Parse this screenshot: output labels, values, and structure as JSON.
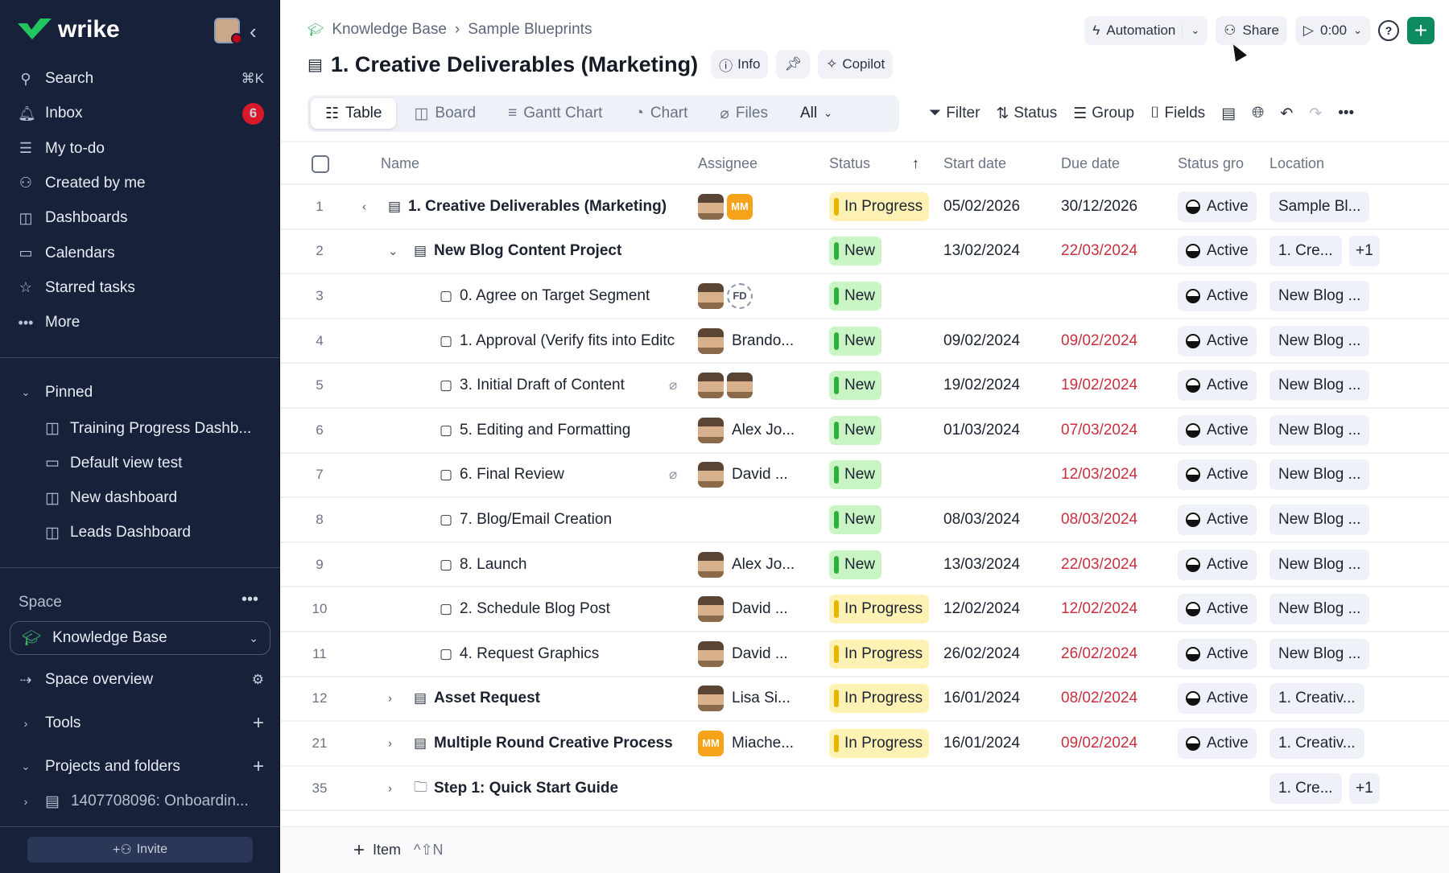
{
  "sidebar": {
    "logo": "wrike",
    "nav": [
      {
        "label": "Search",
        "icon": "search-icon",
        "glyph": "⚲",
        "shortcut": "⌘K"
      },
      {
        "label": "Inbox",
        "icon": "bell-icon",
        "glyph": "🔔︎",
        "badge": "6"
      },
      {
        "label": "My to-do",
        "icon": "todo-icon",
        "glyph": "☰"
      },
      {
        "label": "Created by me",
        "icon": "user-arrow-icon",
        "glyph": "⚇"
      },
      {
        "label": "Dashboards",
        "icon": "dashboard-icon",
        "glyph": "◫"
      },
      {
        "label": "Calendars",
        "icon": "calendar-icon",
        "glyph": "▭"
      },
      {
        "label": "Starred tasks",
        "icon": "star-icon",
        "glyph": "☆"
      },
      {
        "label": "More",
        "icon": "more-icon",
        "glyph": "•••"
      }
    ],
    "pinned_label": "Pinned",
    "pinned": [
      {
        "label": "Training Progress Dashb...",
        "icon": "dashboard-icon",
        "glyph": "◫"
      },
      {
        "label": "Default view test",
        "icon": "folder-icon",
        "glyph": "▭"
      },
      {
        "label": "New dashboard",
        "icon": "dashboard-icon",
        "glyph": "◫"
      },
      {
        "label": "Leads Dashboard",
        "icon": "dashboard-icon",
        "glyph": "◫"
      }
    ],
    "space_label": "Space",
    "space_name": "Knowledge Base",
    "space_overview": "Space overview",
    "tools": "Tools",
    "projects": "Projects and folders",
    "project_item": "1407708096: Onboardin...",
    "invite": "Invite"
  },
  "header": {
    "breadcrumb": [
      "Knowledge Base",
      "Sample Blueprints"
    ],
    "title": "1. Creative Deliverables (Marketing)",
    "info": "Info",
    "copilot": "Copilot",
    "automation": "Automation",
    "share": "Share",
    "timer": "0:00"
  },
  "views": {
    "tabs": [
      "Table",
      "Board",
      "Gantt Chart",
      "Chart",
      "Files"
    ],
    "tab_glyphs": [
      "☷",
      "◫",
      "≡",
      "◔",
      "⌀"
    ],
    "active": "Table",
    "all": "All"
  },
  "toolbar": {
    "filter": "Filter",
    "status": "Status",
    "group": "Group",
    "fields": "Fields"
  },
  "columns": {
    "name": "Name",
    "assignee": "Assignee",
    "status": "Status",
    "start": "Start date",
    "due": "Due date",
    "status_group": "Status gro",
    "location": "Location"
  },
  "colors": {
    "new_bg": "#c9f5c5",
    "new_bar": "#2fae3c",
    "progress_bg": "#fdf1b4",
    "progress_bar": "#e8b400",
    "overdue": "#c8303f",
    "brand_green": "#0e8a5f"
  },
  "rows": [
    {
      "num": "1",
      "level": 0,
      "caret": "‹",
      "type": "project",
      "name": "1. Creative Deliverables (Marketing)",
      "bold": true,
      "assignees": [
        "photo",
        "MM"
      ],
      "assignee_name": "",
      "status": "In Progress",
      "start": "05/02/2026",
      "due": "30/12/2026",
      "overdue": false,
      "group": "Active",
      "location": "Sample Bl..."
    },
    {
      "num": "2",
      "level": 1,
      "caret": "⌄",
      "type": "project",
      "name": "New Blog Content Project",
      "bold": true,
      "assignees": [],
      "assignee_name": "",
      "status": "New",
      "start": "13/02/2024",
      "due": "22/03/2024",
      "overdue": true,
      "group": "Active",
      "location": "1. Cre...",
      "extra": "+1"
    },
    {
      "num": "3",
      "level": 2,
      "type": "task",
      "name": "0. Agree on Target Segment",
      "assignees": [
        "photo",
        "FD"
      ],
      "assignee_name": "",
      "status": "New",
      "start": "",
      "due": "",
      "group": "Active",
      "location": "New Blog ..."
    },
    {
      "num": "4",
      "level": 2,
      "type": "task",
      "name": "1. Approval (Verify fits into Editc",
      "assignees": [
        "photo"
      ],
      "assignee_name": "Brando...",
      "status": "New",
      "start": "09/02/2024",
      "due": "09/02/2024",
      "overdue": true,
      "group": "Active",
      "location": "New Blog ..."
    },
    {
      "num": "5",
      "level": 2,
      "type": "task",
      "name": "3. Initial Draft of Content",
      "attachment": true,
      "assignees": [
        "photo",
        "photo"
      ],
      "assignee_name": "",
      "status": "New",
      "start": "19/02/2024",
      "due": "19/02/2024",
      "overdue": true,
      "group": "Active",
      "location": "New Blog ..."
    },
    {
      "num": "6",
      "level": 2,
      "type": "task",
      "name": "5. Editing and Formatting",
      "assignees": [
        "photo"
      ],
      "assignee_name": "Alex Jo...",
      "status": "New",
      "start": "01/03/2024",
      "due": "07/03/2024",
      "overdue": true,
      "group": "Active",
      "location": "New Blog ..."
    },
    {
      "num": "7",
      "level": 2,
      "type": "task",
      "name": "6. Final Review",
      "attachment": true,
      "assignees": [
        "photo"
      ],
      "assignee_name": "David ...",
      "status": "New",
      "start": "",
      "due": "12/03/2024",
      "overdue": true,
      "group": "Active",
      "location": "New Blog ..."
    },
    {
      "num": "8",
      "level": 2,
      "type": "task",
      "name": "7. Blog/Email Creation",
      "assignees": [],
      "assignee_name": "",
      "status": "New",
      "start": "08/03/2024",
      "due": "08/03/2024",
      "overdue": true,
      "group": "Active",
      "location": "New Blog ..."
    },
    {
      "num": "9",
      "level": 2,
      "type": "task",
      "name": "8. Launch",
      "assignees": [
        "photo"
      ],
      "assignee_name": "Alex Jo...",
      "status": "New",
      "start": "13/03/2024",
      "due": "22/03/2024",
      "overdue": true,
      "group": "Active",
      "location": "New Blog ..."
    },
    {
      "num": "10",
      "level": 2,
      "type": "task",
      "name": "2. Schedule Blog Post",
      "assignees": [
        "photo"
      ],
      "assignee_name": "David ...",
      "status": "In Progress",
      "start": "12/02/2024",
      "due": "12/02/2024",
      "overdue": true,
      "group": "Active",
      "location": "New Blog ..."
    },
    {
      "num": "11",
      "level": 2,
      "type": "task",
      "name": "4. Request Graphics",
      "assignees": [
        "photo"
      ],
      "assignee_name": "David ...",
      "status": "In Progress",
      "start": "26/02/2024",
      "due": "26/02/2024",
      "overdue": true,
      "group": "Active",
      "location": "New Blog ..."
    },
    {
      "num": "12",
      "level": 1,
      "caret": "›",
      "type": "project",
      "name": "Asset Request",
      "bold": true,
      "assignees": [
        "photo"
      ],
      "assignee_name": "Lisa Si...",
      "status": "In Progress",
      "start": "16/01/2024",
      "due": "08/02/2024",
      "overdue": true,
      "group": "Active",
      "location": "1. Creativ..."
    },
    {
      "num": "21",
      "level": 1,
      "caret": "›",
      "type": "project",
      "name": "Multiple Round Creative Process",
      "bold": true,
      "assignees": [
        "MM"
      ],
      "assignee_name": "Miache...",
      "status": "In Progress",
      "start": "16/01/2024",
      "due": "09/02/2024",
      "overdue": true,
      "group": "Active",
      "location": "1. Creativ..."
    },
    {
      "num": "35",
      "level": 1,
      "caret": "›",
      "type": "folder",
      "name": "Step 1: Quick Start Guide",
      "bold": true,
      "assignees": [],
      "assignee_name": "",
      "status": "",
      "start": "",
      "due": "",
      "group": "",
      "location": "1. Cre...",
      "extra": "+1"
    }
  ],
  "footer": {
    "add_item": "Item",
    "shortcut": "^⇧N"
  }
}
